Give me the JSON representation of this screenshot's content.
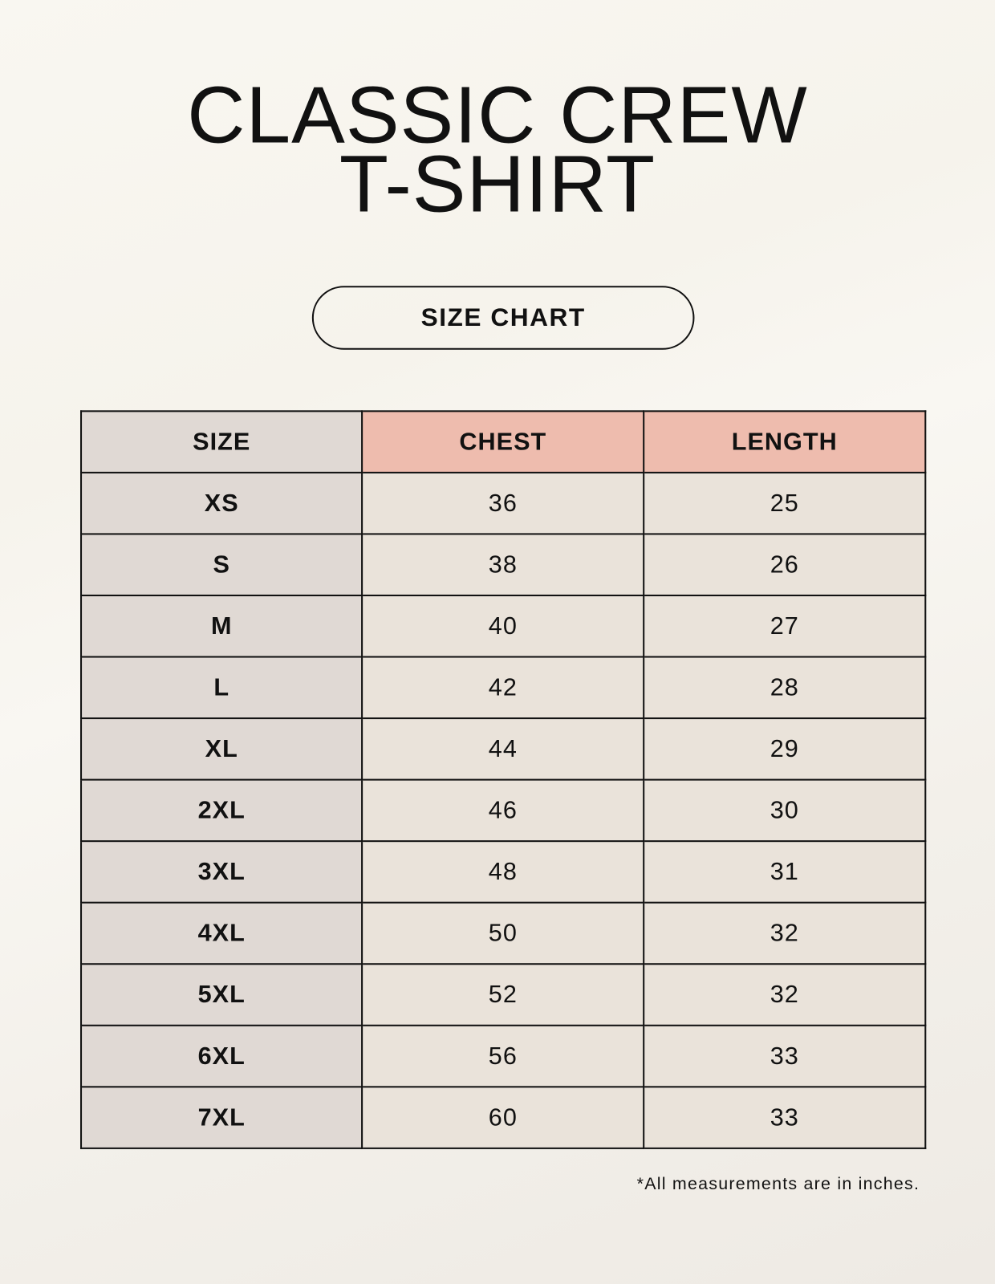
{
  "title": {
    "line1": "CLASSIC CREW",
    "line2": "T-SHIRT"
  },
  "badge": "SIZE CHART",
  "table": {
    "headers": [
      "SIZE",
      "CHEST",
      "LENGTH"
    ],
    "rows": [
      [
        "XS",
        "36",
        "25"
      ],
      [
        "S",
        "38",
        "26"
      ],
      [
        "M",
        "40",
        "27"
      ],
      [
        "L",
        "42",
        "28"
      ],
      [
        "XL",
        "44",
        "29"
      ],
      [
        "2XL",
        "46",
        "30"
      ],
      [
        "3XL",
        "48",
        "31"
      ],
      [
        "4XL",
        "50",
        "32"
      ],
      [
        "5XL",
        "52",
        "32"
      ],
      [
        "6XL",
        "56",
        "33"
      ],
      [
        "7XL",
        "60",
        "33"
      ]
    ]
  },
  "footnote": "*All measurements are in inches.",
  "colors": {
    "size_column": "#e0d9d4",
    "header_accent": "#eebcae",
    "data_cells": "#eae3da",
    "background": "#f8f6f0"
  }
}
